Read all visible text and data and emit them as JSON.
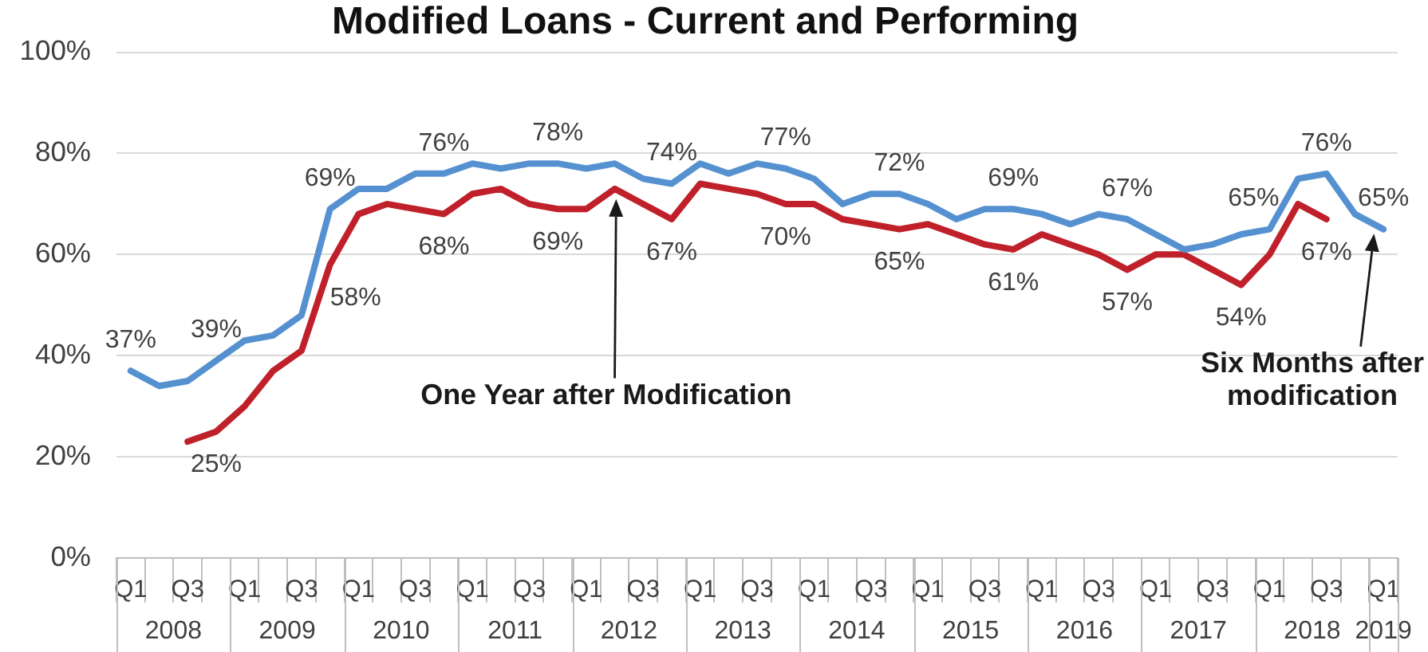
{
  "chart_data": {
    "type": "line",
    "title": "Modified Loans - Current and Performing",
    "categories": [
      "Q1",
      null,
      "Q3",
      null,
      "Q1",
      null,
      "Q3",
      null,
      "Q1",
      null,
      "Q3",
      null,
      "Q1",
      null,
      "Q3",
      null,
      "Q1",
      null,
      "Q3",
      null,
      "Q1",
      null,
      "Q3",
      null,
      "Q1",
      null,
      "Q3",
      null,
      "Q1",
      null,
      "Q3",
      null,
      "Q1",
      null,
      "Q3",
      null,
      "Q1",
      null,
      "Q3",
      null,
      "Q1",
      null,
      "Q3",
      null,
      "Q1"
    ],
    "series": [
      {
        "color": "#5590d0",
        "values": [
          37,
          34,
          35,
          39,
          43,
          44,
          48,
          69,
          73,
          73,
          76,
          76,
          78,
          77,
          78,
          78,
          77,
          78,
          75,
          74,
          78,
          76,
          78,
          77,
          75,
          70,
          72,
          72,
          70,
          67,
          69,
          69,
          68,
          66,
          68,
          67,
          64,
          61,
          62,
          64,
          65,
          75,
          76,
          68,
          65
        ],
        "value_labels": [
          "37%",
          null,
          null,
          "39%",
          null,
          null,
          null,
          "69%",
          null,
          null,
          null,
          "76%",
          null,
          null,
          null,
          "78%",
          null,
          null,
          null,
          "74%",
          null,
          null,
          null,
          "77%",
          null,
          null,
          null,
          "72%",
          null,
          null,
          null,
          "69%",
          null,
          null,
          null,
          "67%",
          null,
          null,
          null,
          null,
          "65%",
          null,
          "76%",
          null,
          "65%"
        ]
      },
      {
        "color": "#c0202a",
        "values": [
          null,
          null,
          23,
          25,
          30,
          37,
          41,
          58,
          68,
          70,
          69,
          68,
          72,
          73,
          70,
          69,
          69,
          73,
          70,
          67,
          74,
          73,
          72,
          70,
          70,
          67,
          66,
          65,
          66,
          64,
          62,
          61,
          64,
          62,
          60,
          57,
          60,
          60,
          57,
          54,
          60,
          70,
          67,
          null,
          null
        ],
        "value_labels": [
          null,
          null,
          null,
          "25%",
          null,
          null,
          null,
          "58%",
          null,
          null,
          null,
          "68%",
          null,
          null,
          null,
          "69%",
          null,
          null,
          null,
          "67%",
          null,
          null,
          null,
          "70%",
          null,
          null,
          null,
          "65%",
          null,
          null,
          null,
          "61%",
          null,
          null,
          null,
          "57%",
          null,
          null,
          null,
          "54%",
          null,
          null,
          "67%",
          null,
          null
        ]
      }
    ],
    "ylim": [
      0,
      100
    ],
    "yticks": [
      {
        "value": 0,
        "label": "0%"
      },
      {
        "value": 20,
        "label": "20%"
      },
      {
        "value": 40,
        "label": "40%"
      },
      {
        "value": 60,
        "label": "60%"
      },
      {
        "value": 80,
        "label": "80%"
      },
      {
        "value": 100,
        "label": "100%"
      }
    ],
    "grid": "y",
    "annotations": [
      "2008",
      "2009",
      "2010",
      "2011",
      "2012",
      "2013",
      "2014",
      "2015",
      "2016",
      "2017",
      "2018",
      "2019",
      "One Year after Modification",
      "Six Months after modification"
    ]
  }
}
